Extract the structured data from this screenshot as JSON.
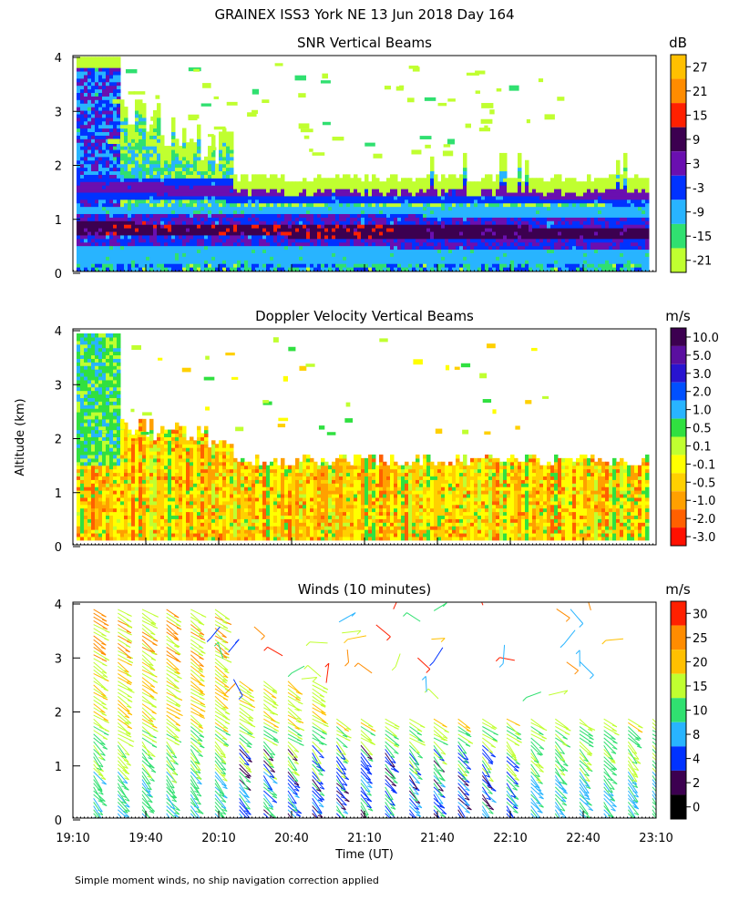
{
  "title": "GRAINEX ISS3 York NE  13 Jun 2018 Day 164",
  "footer_note": "Simple moment winds, no ship navigation correction applied",
  "y_axis_label": "Altitude (km)",
  "x_axis_label": "Time (UT)",
  "chart_data": [
    {
      "type": "heatmap",
      "title": "SNR Vertical Beams",
      "xlabel": "Time (UT)",
      "ylabel": "Altitude (km)",
      "x_range_minutes_utc": [
        1150,
        1390
      ],
      "ylim": [
        0,
        4
      ],
      "y_ticks": [
        "0",
        "1",
        "2",
        "3",
        "4"
      ],
      "colorbar": {
        "unit": "dB",
        "labels": [
          "27",
          "21",
          "15",
          "9",
          "3",
          "-3",
          "-9",
          "-15",
          "-21"
        ],
        "colors": [
          "#FFC000",
          "#FF8C00",
          "#FF2000",
          "#3C0050",
          "#6A0FB0",
          "#0032FF",
          "#28B4FF",
          "#30E070",
          "#C0FF30"
        ]
      },
      "features": [
        {
          "desc": "strong return layer",
          "time_range": [
            "19:10",
            "23:10"
          ],
          "altitude_km": [
            0.6,
            1.1
          ]
        },
        {
          "desc": "secondary layer",
          "time_range": [
            "19:10",
            "23:10"
          ],
          "altitude_km": [
            1.4,
            1.7
          ]
        },
        {
          "desc": "data ceiling",
          "time_range": [
            "20:10",
            "23:10"
          ],
          "altitude_km": 1.7
        }
      ]
    },
    {
      "type": "heatmap",
      "title": "Doppler Velocity Vertical Beams",
      "xlabel": "Time (UT)",
      "ylabel": "Altitude (km)",
      "x_range_minutes_utc": [
        1150,
        1390
      ],
      "ylim": [
        0,
        4
      ],
      "y_ticks": [
        "0",
        "1",
        "2",
        "3",
        "4"
      ],
      "colorbar": {
        "unit": "m/s",
        "labels": [
          "10.0",
          "5.0",
          "3.0",
          "2.0",
          "1.0",
          "0.5",
          "0.1",
          "-0.1",
          "-0.5",
          "-1.0",
          "-2.0",
          "-3.0"
        ],
        "colors": [
          "#3C0050",
          "#5A0FA0",
          "#2814D0",
          "#0050FF",
          "#28B4FF",
          "#30E040",
          "#C0FF30",
          "#FFFF00",
          "#FFD000",
          "#FFA000",
          "#FF6000",
          "#FF1000"
        ]
      },
      "features": [
        {
          "desc": "mostly weak downward motion",
          "time_range": [
            "19:10",
            "23:10"
          ],
          "altitude_km": [
            0.1,
            1.7
          ]
        }
      ]
    },
    {
      "type": "wind_barbs",
      "title": "Winds (10 minutes)",
      "xlabel": "Time (UT)",
      "ylabel": "Altitude (km)",
      "x_range_minutes_utc": [
        1150,
        1390
      ],
      "ylim": [
        0,
        4
      ],
      "y_ticks": [
        "0",
        "1",
        "2",
        "3",
        "4"
      ],
      "x_ticks": [
        "19:10",
        "19:40",
        "20:10",
        "20:40",
        "21:10",
        "21:40",
        "22:10",
        "22:40",
        "23:10"
      ],
      "barb_times": [
        "19:20",
        "19:30",
        "19:40",
        "19:50",
        "20:00",
        "20:10",
        "20:20",
        "20:30",
        "20:40",
        "20:50",
        "21:00",
        "21:10",
        "21:20",
        "21:30",
        "21:40",
        "21:50",
        "22:00",
        "22:10",
        "22:20",
        "22:30",
        "22:40",
        "22:50",
        "23:00",
        "23:10"
      ],
      "colorbar": {
        "unit": "m/s",
        "labels": [
          "30",
          "25",
          "20",
          "15",
          "10",
          "8",
          "4",
          "2",
          "0"
        ],
        "colors": [
          "#FF2000",
          "#FF8C00",
          "#FFC000",
          "#C0FF30",
          "#30E070",
          "#28B4FF",
          "#0032FF",
          "#3C0050",
          "#000000"
        ]
      }
    }
  ]
}
